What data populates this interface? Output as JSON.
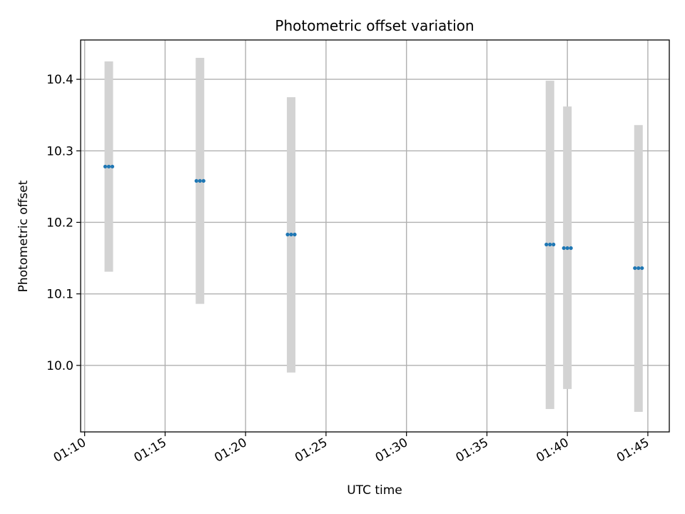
{
  "chart_data": {
    "type": "scatter",
    "title": "Photometric offset variation",
    "xlabel": "UTC time",
    "ylabel": "Photometric offset",
    "grid": true,
    "xlim": [
      "01:09:45",
      "01:46:20"
    ],
    "ylim": [
      9.907,
      10.455
    ],
    "x_ticks": [
      "01:10",
      "01:15",
      "01:20",
      "01:25",
      "01:30",
      "01:35",
      "01:40",
      "01:45"
    ],
    "y_ticks": [
      10.0,
      10.1,
      10.2,
      10.3,
      10.4
    ],
    "y_tick_labels": [
      "10.0",
      "10.1",
      "10.2",
      "10.3",
      "10.4"
    ],
    "series": [
      {
        "color": "#1f77b4",
        "errorbar_color": "#d3d3d3",
        "groups": [
          {
            "time": "01:11:30",
            "y": 10.278,
            "ylow": 10.131,
            "yhigh": 10.425
          },
          {
            "time": "01:17:10",
            "y": 10.258,
            "ylow": 10.086,
            "yhigh": 10.43
          },
          {
            "time": "01:22:50",
            "y": 10.183,
            "ylow": 9.99,
            "yhigh": 10.375
          },
          {
            "time": "01:38:55",
            "y": 10.169,
            "ylow": 9.939,
            "yhigh": 10.398
          },
          {
            "time": "01:40:00",
            "y": 10.164,
            "ylow": 9.967,
            "yhigh": 10.362
          },
          {
            "time": "01:44:25",
            "y": 10.136,
            "ylow": 9.935,
            "yhigh": 10.336
          }
        ]
      }
    ]
  }
}
